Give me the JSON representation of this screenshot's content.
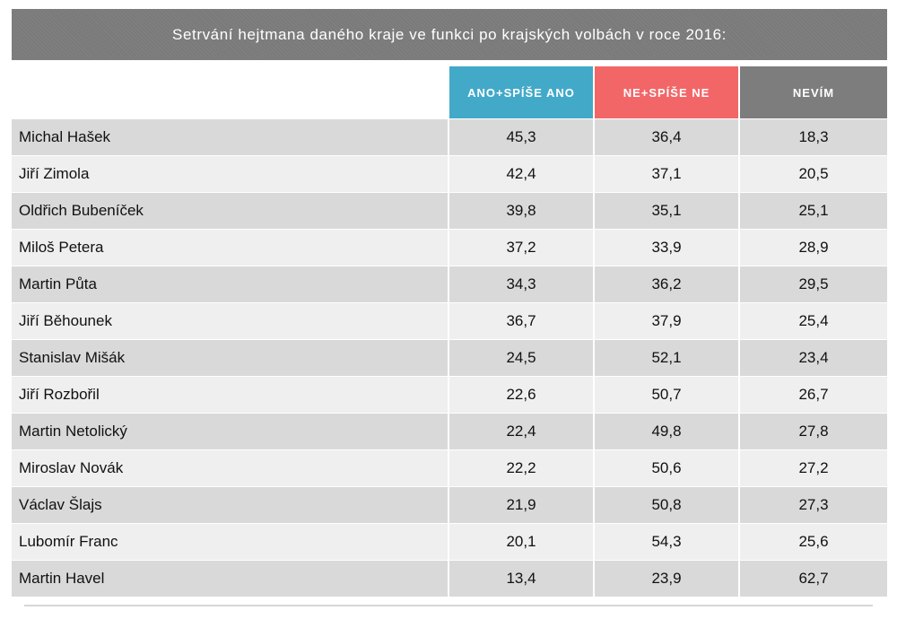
{
  "chart_data": {
    "type": "table",
    "title": "Setrvání hejtmana daného kraje ve funkci po krajských volbách v roce 2016:",
    "columns": [
      {
        "label": "ANO+SPÍŠE ANO",
        "color": "#42a9c9"
      },
      {
        "label": "NE+SPÍŠE NE",
        "color": "#f26668"
      },
      {
        "label": "NEVÍM",
        "color": "#7d7d7d"
      }
    ],
    "rows": [
      {
        "name": "Michal Hašek",
        "values": [
          "45,3",
          "36,4",
          "18,3"
        ]
      },
      {
        "name": "Jiří Zimola",
        "values": [
          "42,4",
          "37,1",
          "20,5"
        ]
      },
      {
        "name": "Oldřich Bubeníček",
        "values": [
          "39,8",
          "35,1",
          "25,1"
        ]
      },
      {
        "name": "Miloš Petera",
        "values": [
          "37,2",
          "33,9",
          "28,9"
        ]
      },
      {
        "name": "Martin Půta",
        "values": [
          "34,3",
          "36,2",
          "29,5"
        ]
      },
      {
        "name": "Jiří Běhounek",
        "values": [
          "36,7",
          "37,9",
          "25,4"
        ]
      },
      {
        "name": "Stanislav Mišák",
        "values": [
          "24,5",
          "52,1",
          "23,4"
        ]
      },
      {
        "name": "Jiří Rozbořil",
        "values": [
          "22,6",
          "50,7",
          "26,7"
        ]
      },
      {
        "name": "Martin Netolický",
        "values": [
          "22,4",
          "49,8",
          "27,8"
        ]
      },
      {
        "name": "Miroslav Novák",
        "values": [
          "22,2",
          "50,6",
          "27,2"
        ]
      },
      {
        "name": "Václav Šlajs",
        "values": [
          "21,9",
          "50,8",
          "27,3"
        ]
      },
      {
        "name": "Lubomír Franc",
        "values": [
          "20,1",
          "54,3",
          "25,6"
        ]
      },
      {
        "name": "Martin Havel",
        "values": [
          "13,4",
          "23,9",
          "62,7"
        ]
      }
    ]
  }
}
